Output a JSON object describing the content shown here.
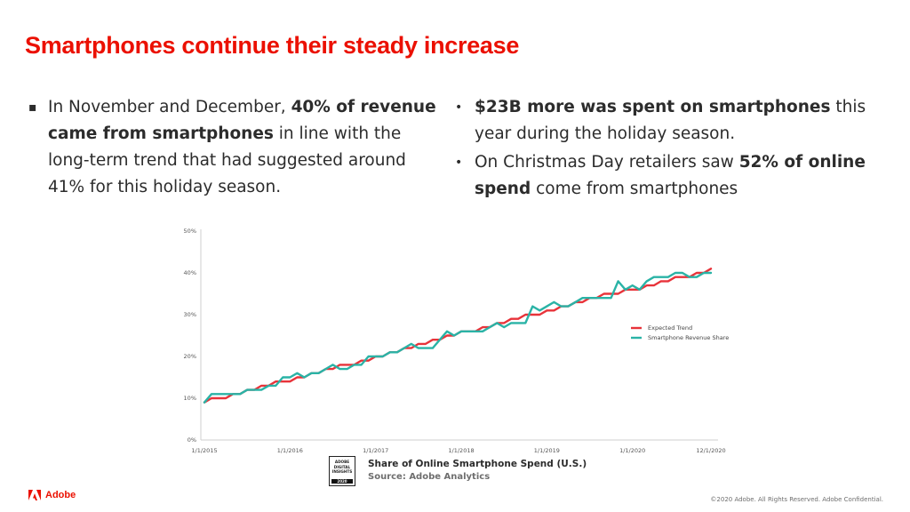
{
  "slide": {
    "title": "Smartphones continue their steady increase",
    "left_bullets": [
      {
        "marker": "▪",
        "parts": [
          {
            "text": "In November and December, ",
            "bold": false
          },
          {
            "text": "40% of revenue came from smartphones",
            "bold": true
          },
          {
            "text": " in line with the long-term trend that had suggested around 41% for this holiday season.",
            "bold": false
          }
        ]
      }
    ],
    "right_bullets": [
      {
        "marker": "•",
        "parts": [
          {
            "text": "$23B more was spent on smartphones",
            "bold": true
          },
          {
            "text": " this year during the holiday season.",
            "bold": false
          }
        ]
      },
      {
        "marker": "•",
        "parts": [
          {
            "text": "On Christmas Day retailers saw ",
            "bold": false
          },
          {
            "text": "52% of online spend",
            "bold": true
          },
          {
            "text": " come from smartphones",
            "bold": false
          }
        ]
      }
    ],
    "caption": {
      "badge_lines": [
        "ADOBE",
        "DIGITAL",
        "INSIGHTS"
      ],
      "badge_year": "2020",
      "title": "Share of Online Smartphone Spend (U.S.)",
      "source": "Source: Adobe Analytics"
    },
    "footer": {
      "brand": "Adobe",
      "copyright": "©2020 Adobe. All Rights Reserved. Adobe Confidential."
    },
    "colors": {
      "brand_red": "#eb1000",
      "expected_trend": "#e8333a",
      "smartphone_share": "#2ab3a6"
    }
  },
  "chart_data": {
    "type": "line",
    "title": "Share of Online Smartphone Spend (U.S.)",
    "xlabel": "",
    "ylabel": "",
    "x_start": "1/1/2015",
    "x_end": "12/1/2020",
    "x_interval": "monthly",
    "x_tick_labels": [
      "1/1/2015",
      "1/1/2016",
      "1/1/2017",
      "1/1/2018",
      "1/1/2019",
      "1/1/2020",
      "12/1/2020"
    ],
    "x_tick_month_index": [
      0,
      12,
      24,
      36,
      48,
      60,
      71
    ],
    "y_tick_labels": [
      "0%",
      "10%",
      "20%",
      "30%",
      "40%",
      "50%"
    ],
    "y_ticks": [
      0,
      10,
      20,
      30,
      40,
      50
    ],
    "ylim": [
      0,
      50
    ],
    "grid": false,
    "legend_position": "right",
    "series": [
      {
        "name": "Expected Trend",
        "color": "#e8333a",
        "values": [
          9,
          10,
          10,
          10,
          11,
          11,
          12,
          12,
          13,
          13,
          14,
          14,
          14,
          15,
          15,
          16,
          16,
          17,
          17,
          18,
          18,
          18,
          19,
          19,
          20,
          20,
          21,
          21,
          22,
          22,
          23,
          23,
          24,
          24,
          25,
          25,
          26,
          26,
          26,
          27,
          27,
          28,
          28,
          29,
          29,
          30,
          30,
          30,
          31,
          31,
          32,
          32,
          33,
          33,
          34,
          34,
          35,
          35,
          35,
          36,
          36,
          36,
          37,
          37,
          38,
          38,
          39,
          39,
          39,
          40,
          40,
          41
        ]
      },
      {
        "name": "Smartphone Revenue Share",
        "color": "#2ab3a6",
        "values": [
          9,
          11,
          11,
          11,
          11,
          11,
          12,
          12,
          12,
          13,
          13,
          15,
          15,
          16,
          15,
          16,
          16,
          17,
          18,
          17,
          17,
          18,
          18,
          20,
          20,
          20,
          21,
          21,
          22,
          23,
          22,
          22,
          22,
          24,
          26,
          25,
          26,
          26,
          26,
          26,
          27,
          28,
          27,
          28,
          28,
          28,
          32,
          31,
          32,
          33,
          32,
          32,
          33,
          34,
          34,
          34,
          34,
          34,
          38,
          36,
          37,
          36,
          38,
          39,
          39,
          39,
          40,
          40,
          39,
          39,
          40,
          40
        ]
      }
    ]
  }
}
